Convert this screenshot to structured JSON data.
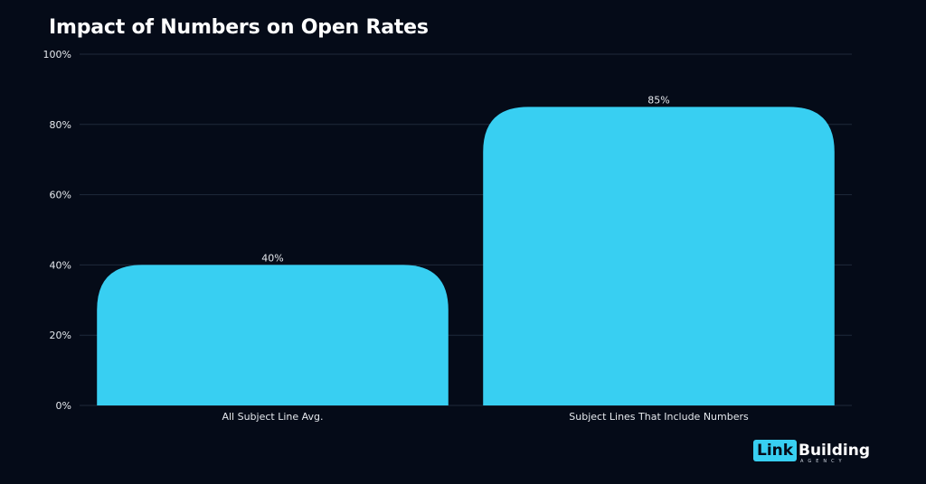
{
  "chart_data": {
    "type": "bar",
    "title": "Impact of Numbers on Open Rates",
    "categories": [
      "All Subject Line Avg.",
      "Subject Lines That Include Numbers"
    ],
    "values": [
      40,
      85
    ],
    "data_labels": [
      "40%",
      "85%"
    ],
    "ylim": [
      0,
      100
    ],
    "y_ticks": [
      0,
      20,
      40,
      60,
      80,
      100
    ],
    "y_tick_labels": [
      "0%",
      "20%",
      "40%",
      "60%",
      "80%",
      "100%"
    ],
    "xlabel": "",
    "ylabel": "",
    "grid": true,
    "legend": "none"
  },
  "colors": {
    "background": "#050b18",
    "bar": "#38cff2",
    "grid": "#1f2a3a",
    "text": "#ffffff",
    "axis_text": "#e6e9ee"
  },
  "logo": {
    "box_text": "Link",
    "word_text": "Building",
    "sub_text": "AGENCY"
  }
}
